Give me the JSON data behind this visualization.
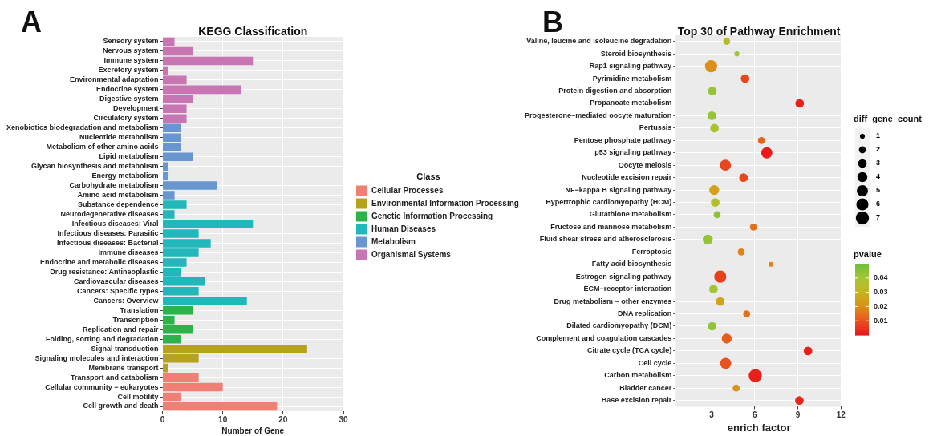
{
  "chart_data": [
    {
      "type": "bar",
      "orientation": "horizontal",
      "title": "KEGG Classification",
      "xlabel": "Number of Gene",
      "legend_title": "Class",
      "legend": "right",
      "grid": true,
      "annotations": [
        "A"
      ],
      "categories": [
        "Sensory system",
        "Nervous system",
        "Immune system",
        "Excretory system",
        "Environmental adaptation",
        "Endocrine system",
        "Digestive system",
        "Development",
        "Circulatory system",
        "Xenobiotics biodegradation and metabolism",
        "Nucleotide metabolism",
        "Metabolism of other amino acids",
        "Lipid metabolism",
        "Glycan biosynthesis and metabolism",
        "Energy metabolism",
        "Carbohydrate metabolism",
        "Amino acid metabolism",
        "Substance dependence",
        "Neurodegenerative diseases",
        "Infectious diseases: Viral",
        "Infectious diseases: Parasitic",
        "Infectious diseases: Bacterial",
        "Immune diseases",
        "Endocrine and metabolic diseases",
        "Drug resistance: Antineoplastic",
        "Cardiovascular diseases",
        "Cancers: Specific types",
        "Cancers: Overview",
        "Translation",
        "Transcription",
        "Replication and repair",
        "Folding, sorting and degradation",
        "Signal transduction",
        "Signaling molecules and interaction",
        "Membrane transport",
        "Transport and catabolism",
        "Cellular community − eukaryotes",
        "Cell motility",
        "Cell growth and death"
      ],
      "xlim": [
        0,
        30
      ],
      "xticks": [
        0,
        10,
        20,
        30
      ],
      "series": [
        {
          "name": "Cellular Processes",
          "color": "#f07f75",
          "values": [
            null,
            null,
            null,
            null,
            null,
            null,
            null,
            null,
            null,
            null,
            null,
            null,
            null,
            null,
            null,
            null,
            null,
            null,
            null,
            null,
            null,
            null,
            null,
            null,
            null,
            null,
            null,
            null,
            null,
            null,
            null,
            null,
            null,
            null,
            null,
            6,
            10,
            3,
            19
          ]
        },
        {
          "name": "Environmental Information Processing",
          "color": "#b5a21e",
          "values": [
            null,
            null,
            null,
            null,
            null,
            null,
            null,
            null,
            null,
            null,
            null,
            null,
            null,
            null,
            null,
            null,
            null,
            null,
            null,
            null,
            null,
            null,
            null,
            null,
            null,
            null,
            null,
            null,
            null,
            null,
            null,
            null,
            24,
            6,
            1,
            null,
            null,
            null,
            null
          ]
        },
        {
          "name": "Genetic Information Processing",
          "color": "#2db34a",
          "values": [
            null,
            null,
            null,
            null,
            null,
            null,
            null,
            null,
            null,
            null,
            null,
            null,
            null,
            null,
            null,
            null,
            null,
            null,
            null,
            null,
            null,
            null,
            null,
            null,
            null,
            null,
            null,
            null,
            5,
            2,
            5,
            3,
            null,
            null,
            null,
            null,
            null,
            null,
            null
          ]
        },
        {
          "name": "Human Diseases",
          "color": "#22b8bb",
          "values": [
            null,
            null,
            null,
            null,
            null,
            null,
            null,
            null,
            null,
            null,
            null,
            null,
            null,
            null,
            null,
            null,
            null,
            4,
            2,
            15,
            6,
            8,
            6,
            4,
            3,
            7,
            6,
            14,
            null,
            null,
            null,
            null,
            null,
            null,
            null,
            null,
            null,
            null,
            null
          ]
        },
        {
          "name": "Metabolism",
          "color": "#6796d0",
          "values": [
            null,
            null,
            null,
            null,
            null,
            null,
            null,
            null,
            null,
            3,
            3,
            3,
            5,
            1,
            1,
            9,
            2,
            null,
            null,
            null,
            null,
            null,
            null,
            null,
            null,
            null,
            null,
            null,
            null,
            null,
            null,
            null,
            null,
            null,
            null,
            null,
            null,
            null,
            null
          ]
        },
        {
          "name": "Organismal Systems",
          "color": "#c775b3",
          "values": [
            2,
            5,
            15,
            1,
            4,
            13,
            5,
            4,
            4,
            null,
            null,
            null,
            null,
            null,
            null,
            null,
            null,
            null,
            null,
            null,
            null,
            null,
            null,
            null,
            null,
            null,
            null,
            null,
            null,
            null,
            null,
            null,
            null,
            null,
            null,
            null,
            null,
            null,
            null
          ]
        }
      ]
    },
    {
      "type": "bubble",
      "orientation": "horizontal",
      "title": "Top 30 of Pathway Enrichment",
      "xlabel": "enrich factor",
      "legend_title": "diff_gene_count",
      "clabel": "pvalue",
      "grid": true,
      "annotations": [
        "B"
      ],
      "categories": [
        "Valine, leucine and isoleucine degradation",
        "Steroid biosynthesis",
        "Rap1 signaling pathway",
        "Pyrimidine metabolism",
        "Protein digestion and absorption",
        "Propanoate metabolism",
        "Progesterone−mediated oocyte maturation",
        "Pertussis",
        "Pentose phosphate pathway",
        "p53 signaling pathway",
        "Oocyte meiosis",
        "Nucleotide excision repair",
        "NF−kappa B signaling pathway",
        "Hypertrophic cardiomyopathy (HCM)",
        "Glutathione metabolism",
        "Fructose and mannose metabolism",
        "Fluid shear stress and atherosclerosis",
        "Ferroptosis",
        "Fatty acid biosynthesis",
        "Estrogen signaling pathway",
        "ECM−receptor interaction",
        "Drug metabolism − other enzymes",
        "DNA replication",
        "Dilated cardiomyopathy (DCM)",
        "Complement and coagulation cascades",
        "Citrate cycle (TCA cycle)",
        "Cell cycle",
        "Carbon metabolism",
        "Bladder cancer",
        "Base excision repair"
      ],
      "values": [
        4.05,
        4.76,
        2.96,
        5.33,
        3.05,
        9.13,
        3.02,
        3.2,
        6.47,
        6.84,
        3.96,
        5.22,
        3.18,
        3.25,
        3.38,
        5.91,
        2.73,
        5.06,
        7.13,
        3.6,
        3.13,
        3.6,
        5.44,
        3.04,
        4.05,
        9.71,
        3.98,
        6.04,
        4.71,
        9.11
      ],
      "sizes": [
        2,
        1,
        6,
        3,
        3,
        3,
        3,
        3,
        2,
        5,
        5,
        3,
        4,
        3,
        2,
        2,
        4,
        2,
        1,
        6,
        3,
        3,
        2,
        3,
        4,
        3,
        5,
        7,
        2,
        3
      ],
      "cvalues": [
        0.035,
        0.04,
        0.02,
        0.008,
        0.042,
        0.002,
        0.042,
        0.037,
        0.013,
        0.001,
        0.008,
        0.008,
        0.025,
        0.036,
        0.045,
        0.015,
        0.043,
        0.018,
        0.018,
        0.007,
        0.04,
        0.025,
        0.015,
        0.042,
        0.012,
        0.002,
        0.01,
        0.002,
        0.022,
        0.003
      ],
      "size_legend": [
        1,
        2,
        3,
        4,
        5,
        6,
        7
      ],
      "clim": [
        0,
        0.05
      ],
      "cticks": [
        0.01,
        0.02,
        0.03,
        0.04
      ],
      "xlim": [
        0.5,
        12.1
      ],
      "xticks": [
        3,
        6,
        9,
        12
      ]
    }
  ]
}
